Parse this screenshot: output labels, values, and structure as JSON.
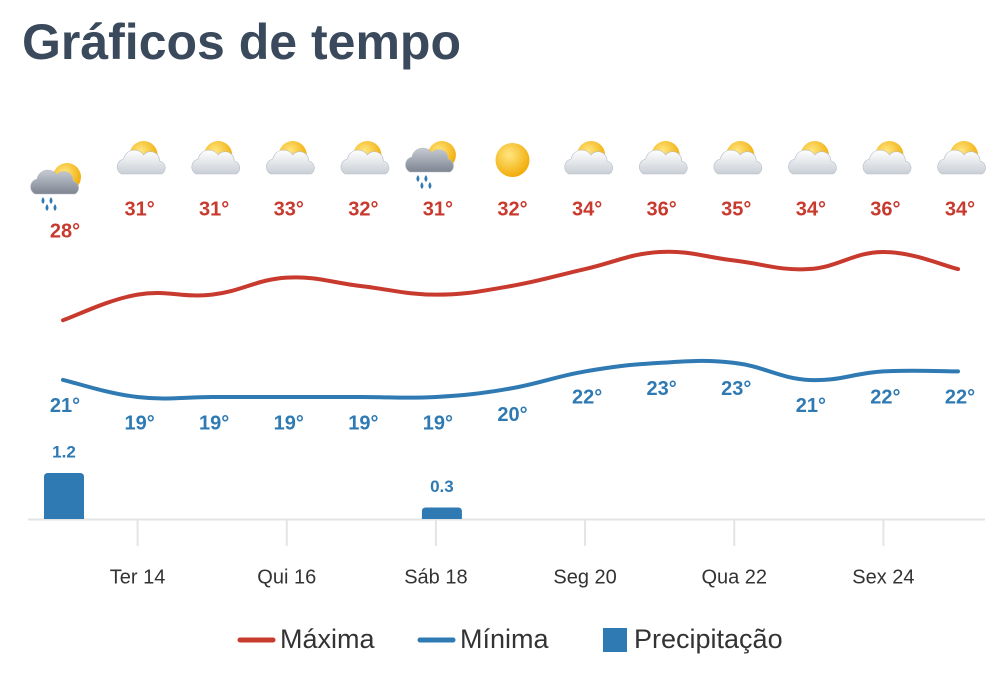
{
  "chart_data": {
    "type": "line",
    "title": "Gráficos de tempo",
    "categories": [
      null,
      "Ter 14",
      null,
      "Qui 16",
      null,
      "Sáb 18",
      null,
      "Seg 20",
      null,
      "Qua 22",
      null,
      "Sex 24",
      null
    ],
    "series": [
      {
        "name": "Máxima",
        "color": "#c8392e",
        "values": [
          28,
          31,
          31,
          33,
          32,
          31,
          32,
          34,
          36,
          35,
          34,
          36,
          34
        ],
        "value_labels": [
          "28°",
          "31°",
          "31°",
          "33°",
          "32°",
          "31°",
          "32°",
          "34°",
          "36°",
          "35°",
          "34°",
          "36°",
          "34°"
        ]
      },
      {
        "name": "Mínima",
        "color": "#2f7ab3",
        "values": [
          21,
          19,
          19,
          19,
          19,
          19,
          20,
          22,
          23,
          23,
          21,
          22,
          22
        ],
        "value_labels": [
          "21°",
          "19°",
          "19°",
          "19°",
          "19°",
          "19°",
          "20°",
          "22°",
          "23°",
          "23°",
          "21°",
          "22°",
          "22°"
        ]
      },
      {
        "name": "Precipitação",
        "type": "bar",
        "color": "#2f7ab3",
        "values": [
          1.2,
          null,
          null,
          null,
          null,
          0.3,
          null,
          null,
          null,
          null,
          null,
          null,
          null
        ]
      }
    ],
    "legend": "bottom"
  }
}
